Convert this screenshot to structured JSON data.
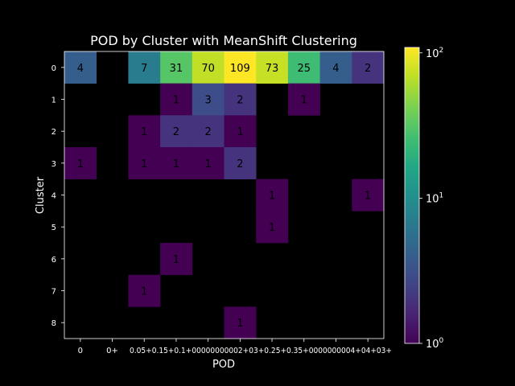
{
  "chart_data": {
    "type": "heatmap",
    "title": "POD by Cluster with MeanShift Clustering",
    "xlabel": "POD",
    "ylabel": "Cluster",
    "x_tick_labels": [
      "0",
      "0+",
      "0.05+",
      "0.1+",
      "0.15+",
      "0.2+",
      "0.25+",
      "0.3+",
      "0.35+",
      "0.4+"
    ],
    "x_tick_labels_render_note": "",
    "x_categories_printed": [
      "0",
      "0+",
      "0.05+0.15+0.1+00000000002+03+0.25+0.35+0000000004+04+03+",
      "",
      "",
      "",
      "",
      "",
      "",
      ""
    ],
    "y_categories": [
      "0",
      "1",
      "2",
      "3",
      "4",
      "5",
      "6",
      "7",
      "8"
    ],
    "values": [
      [
        4,
        null,
        7,
        31,
        70,
        109,
        73,
        25,
        4,
        2
      ],
      [
        null,
        null,
        null,
        1,
        3,
        2,
        null,
        1,
        null,
        null
      ],
      [
        null,
        null,
        1,
        2,
        2,
        1,
        null,
        null,
        null,
        null
      ],
      [
        1,
        null,
        1,
        1,
        1,
        2,
        null,
        null,
        null,
        null
      ],
      [
        null,
        null,
        null,
        null,
        null,
        null,
        1,
        null,
        null,
        1
      ],
      [
        null,
        null,
        null,
        null,
        null,
        null,
        1,
        null,
        null,
        null
      ],
      [
        null,
        null,
        null,
        1,
        null,
        null,
        null,
        null,
        null,
        null
      ],
      [
        null,
        null,
        1,
        null,
        null,
        null,
        null,
        null,
        null,
        null
      ],
      [
        null,
        null,
        null,
        null,
        null,
        1,
        null,
        null,
        null,
        null
      ]
    ],
    "colorbar": {
      "scale": "log",
      "range": [
        1,
        109
      ],
      "colormap": "viridis",
      "ticks": [
        {
          "value": 1,
          "base": "10",
          "exp": "0"
        },
        {
          "value": 10,
          "base": "10",
          "exp": "1"
        },
        {
          "value": 100,
          "base": "10",
          "exp": "2"
        }
      ]
    },
    "colors": {
      "background": "#000000",
      "text": "#ffffff",
      "cell_text": "#000000"
    }
  }
}
